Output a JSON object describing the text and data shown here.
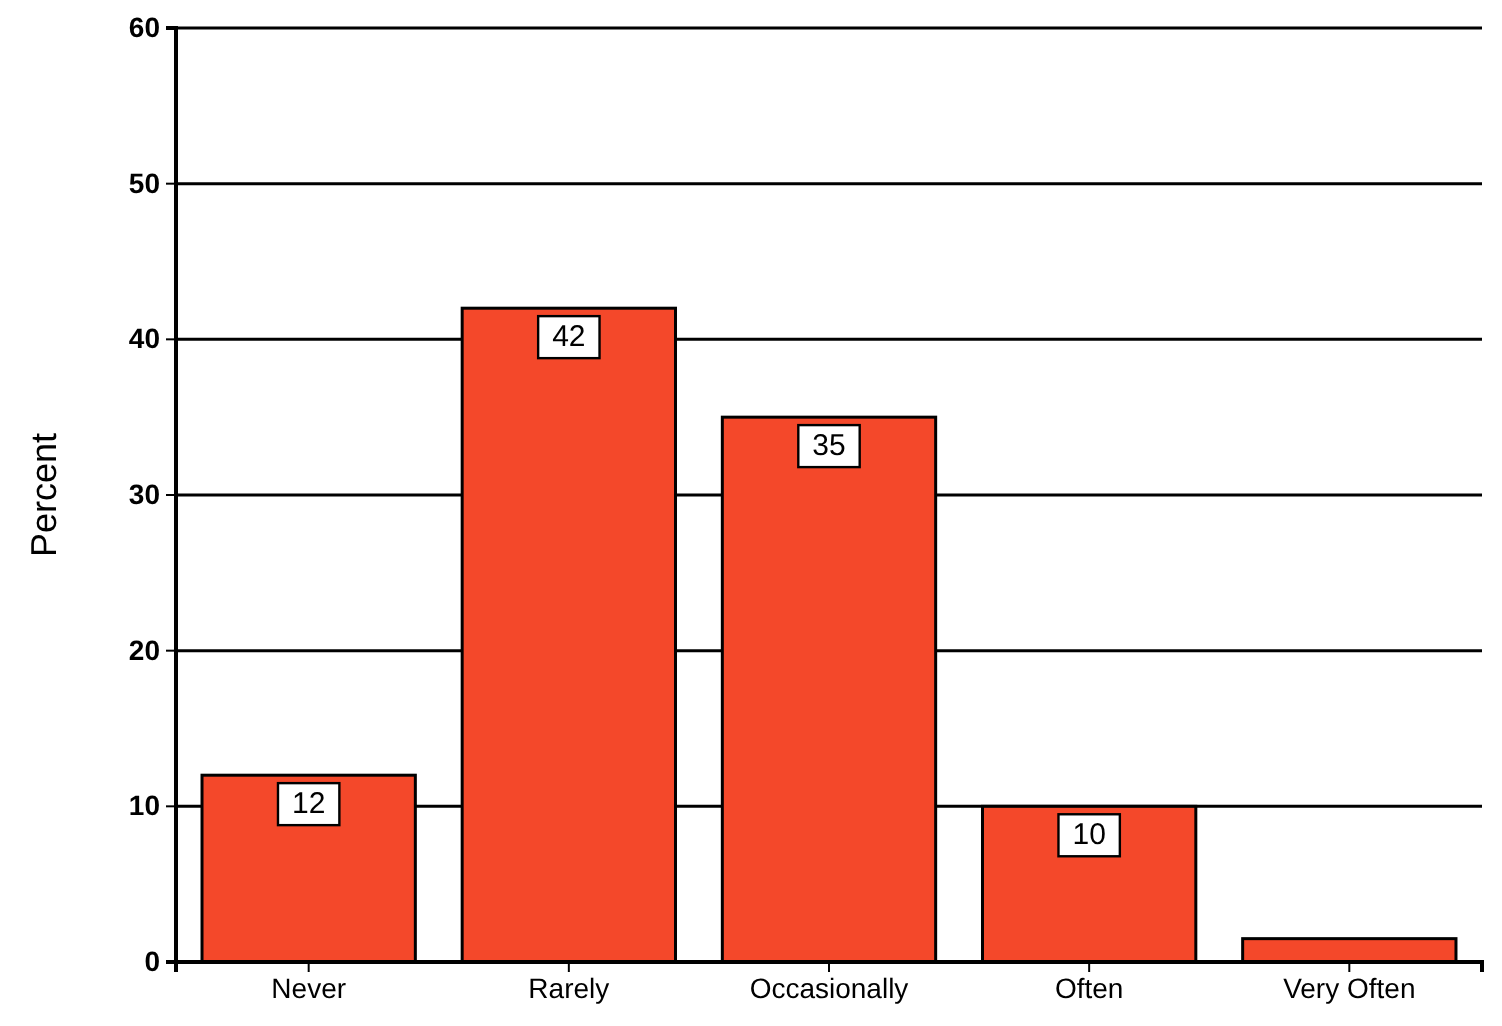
{
  "chart_data": {
    "type": "bar",
    "ylabel": "Percent",
    "categories": [
      "Never",
      "Rarely",
      "Occasionally",
      "Often",
      "Very Often"
    ],
    "values": [
      12,
      42,
      35,
      10,
      1.5
    ],
    "value_labels": [
      "12",
      "42",
      "35",
      "10",
      null
    ],
    "color": "#f4482a",
    "ylim": [
      0,
      60
    ],
    "yticks": [
      0,
      10,
      20,
      30,
      40,
      50,
      60
    ],
    "grid": "y"
  }
}
